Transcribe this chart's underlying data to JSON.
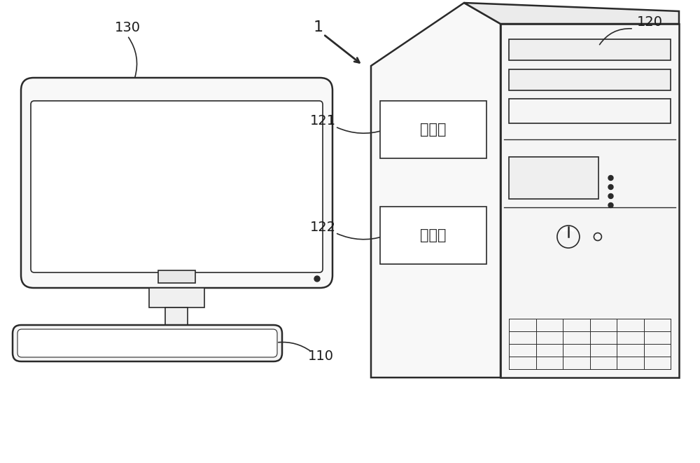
{
  "bg_color": "#ffffff",
  "line_color": "#2a2a2a",
  "label_color": "#1a1a1a",
  "labels": {
    "main": "1",
    "monitor": "130",
    "keyboard": "110",
    "tower": "120",
    "processor_label": "121",
    "storage_label": "122",
    "processor_text": "处理器",
    "storage_text": "存储器"
  },
  "figsize": [
    10.0,
    6.61
  ],
  "dpi": 100
}
